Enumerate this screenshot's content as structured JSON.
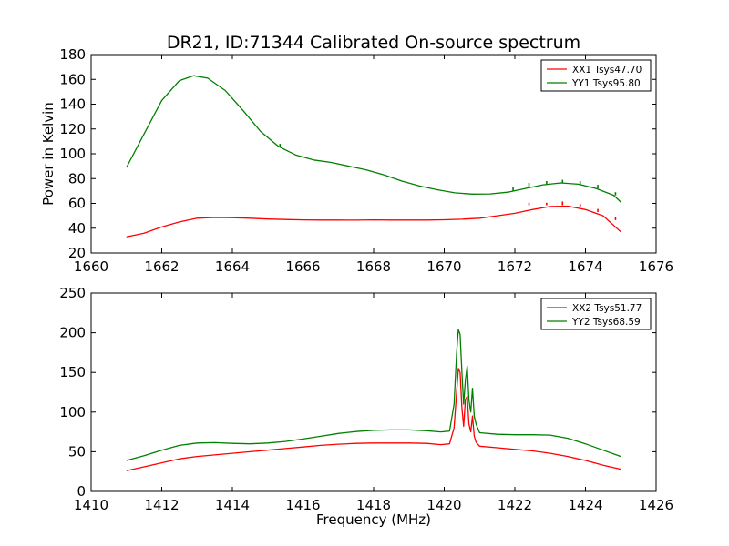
{
  "title": "DR21, ID:71344 Calibrated On-source spectrum",
  "colors": {
    "red": "#ff0000",
    "green": "#008000"
  },
  "chart_data": [
    {
      "type": "line",
      "ylabel": "Power in Kelvin",
      "xlabel": "",
      "xlim": [
        1660,
        1676
      ],
      "ylim": [
        20,
        180
      ],
      "xticks": [
        "1660",
        "1662",
        "1664",
        "1666",
        "1668",
        "1670",
        "1672",
        "1674",
        "1676"
      ],
      "yticks": [
        "20",
        "40",
        "60",
        "80",
        "100",
        "120",
        "140",
        "160",
        "180"
      ],
      "legend_position": "top-right",
      "series": [
        {
          "name": "XX1 Tsys47.70",
          "color": "#ff0000",
          "points": [
            [
              1661.0,
              33
            ],
            [
              1661.5,
              36
            ],
            [
              1662.0,
              41
            ],
            [
              1662.5,
              45
            ],
            [
              1663.0,
              48
            ],
            [
              1663.5,
              48.6
            ],
            [
              1664.0,
              48.5
            ],
            [
              1664.5,
              48
            ],
            [
              1665.0,
              47.4
            ],
            [
              1665.5,
              47
            ],
            [
              1666.0,
              46.7
            ],
            [
              1666.5,
              46.6
            ],
            [
              1667.0,
              46.6
            ],
            [
              1667.5,
              46.5
            ],
            [
              1668.0,
              46.7
            ],
            [
              1668.5,
              46.6
            ],
            [
              1669.0,
              46.6
            ],
            [
              1669.5,
              46.6
            ],
            [
              1670.0,
              46.8
            ],
            [
              1670.5,
              47.2
            ],
            [
              1671.0,
              48
            ],
            [
              1671.5,
              50
            ],
            [
              1672.0,
              52
            ],
            [
              1672.5,
              55
            ],
            [
              1673.0,
              57.5
            ],
            [
              1673.5,
              57.8
            ],
            [
              1674.0,
              55
            ],
            [
              1674.5,
              50
            ],
            [
              1675.0,
              37
            ]
          ],
          "spikes": [
            [
              1672.4,
              58.5,
              60.5
            ],
            [
              1672.9,
              58.5,
              60.5
            ],
            [
              1673.35,
              58.5,
              61.5
            ],
            [
              1673.85,
              57,
              59.5
            ],
            [
              1674.35,
              53,
              55.5
            ],
            [
              1674.85,
              46.5,
              49
            ]
          ]
        },
        {
          "name": "YY1 Tsys95.80",
          "color": "#008000",
          "points": [
            [
              1661.0,
              89
            ],
            [
              1661.5,
              116
            ],
            [
              1662.0,
              143
            ],
            [
              1662.5,
              159
            ],
            [
              1662.9,
              163
            ],
            [
              1663.3,
              161
            ],
            [
              1663.8,
              151
            ],
            [
              1664.3,
              135
            ],
            [
              1664.8,
              118
            ],
            [
              1665.3,
              106
            ],
            [
              1665.8,
              99
            ],
            [
              1666.3,
              95
            ],
            [
              1666.8,
              93
            ],
            [
              1667.3,
              90
            ],
            [
              1667.8,
              87
            ],
            [
              1668.3,
              83
            ],
            [
              1668.8,
              78
            ],
            [
              1669.3,
              74
            ],
            [
              1669.8,
              71
            ],
            [
              1670.3,
              68.5
            ],
            [
              1670.8,
              67.5
            ],
            [
              1671.3,
              67.6
            ],
            [
              1671.8,
              69
            ],
            [
              1672.3,
              72
            ],
            [
              1672.8,
              75
            ],
            [
              1673.3,
              76.5
            ],
            [
              1673.8,
              75.5
            ],
            [
              1674.3,
              72
            ],
            [
              1674.8,
              66.5
            ],
            [
              1675.0,
              61
            ]
          ],
          "spikes": [
            [
              1665.35,
              105,
              108
            ],
            [
              1671.95,
              70,
              73
            ],
            [
              1672.4,
              73.5,
              76.5
            ],
            [
              1672.9,
              75.5,
              78
            ],
            [
              1673.35,
              76.5,
              79
            ],
            [
              1673.85,
              75.5,
              78
            ],
            [
              1674.35,
              72,
              75
            ],
            [
              1674.85,
              66.5,
              69
            ]
          ]
        }
      ]
    },
    {
      "type": "line",
      "ylabel": "",
      "xlabel": "Frequency (MHz)",
      "xlim": [
        1410,
        1426
      ],
      "ylim": [
        0,
        250
      ],
      "xticks": [
        "1410",
        "1412",
        "1414",
        "1416",
        "1418",
        "1420",
        "1422",
        "1424",
        "1426"
      ],
      "yticks": [
        "0",
        "50",
        "100",
        "150",
        "200",
        "250"
      ],
      "legend_position": "top-right",
      "series": [
        {
          "name": "XX2 Tsys51.77",
          "color": "#ff0000",
          "points": [
            [
              1411.0,
              26
            ],
            [
              1411.5,
              31
            ],
            [
              1412.0,
              36
            ],
            [
              1412.5,
              41
            ],
            [
              1413.0,
              44
            ],
            [
              1413.5,
              46
            ],
            [
              1414.0,
              48
            ],
            [
              1414.5,
              50
            ],
            [
              1415.0,
              52
            ],
            [
              1415.5,
              54
            ],
            [
              1416.0,
              56
            ],
            [
              1416.5,
              58
            ],
            [
              1417.0,
              59.5
            ],
            [
              1417.5,
              60.5
            ],
            [
              1418.0,
              61
            ],
            [
              1418.5,
              61
            ],
            [
              1419.0,
              61
            ],
            [
              1419.5,
              60.5
            ],
            [
              1419.9,
              59
            ],
            [
              1420.15,
              60
            ],
            [
              1420.28,
              80
            ],
            [
              1420.35,
              125
            ],
            [
              1420.4,
              155
            ],
            [
              1420.45,
              150
            ],
            [
              1420.5,
              105
            ],
            [
              1420.55,
              82
            ],
            [
              1420.6,
              115
            ],
            [
              1420.65,
              120
            ],
            [
              1420.7,
              85
            ],
            [
              1420.75,
              75
            ],
            [
              1420.8,
              95
            ],
            [
              1420.85,
              70
            ],
            [
              1420.9,
              62
            ],
            [
              1421.0,
              57
            ],
            [
              1421.5,
              55
            ],
            [
              1422.0,
              53
            ],
            [
              1422.5,
              51
            ],
            [
              1423.0,
              48
            ],
            [
              1423.5,
              44
            ],
            [
              1424.0,
              39
            ],
            [
              1424.5,
              33
            ],
            [
              1425.0,
              28
            ]
          ]
        },
        {
          "name": "YY2 Tsys68.59",
          "color": "#008000",
          "points": [
            [
              1411.0,
              39
            ],
            [
              1411.5,
              45
            ],
            [
              1412.0,
              52
            ],
            [
              1412.5,
              58
            ],
            [
              1413.0,
              61
            ],
            [
              1413.5,
              61.5
            ],
            [
              1414.0,
              60.5
            ],
            [
              1414.5,
              60
            ],
            [
              1415.0,
              61
            ],
            [
              1415.5,
              63
            ],
            [
              1416.0,
              66
            ],
            [
              1416.5,
              69.5
            ],
            [
              1417.0,
              73
            ],
            [
              1417.5,
              75.5
            ],
            [
              1418.0,
              77
            ],
            [
              1418.5,
              77.5
            ],
            [
              1419.0,
              77.5
            ],
            [
              1419.5,
              76.5
            ],
            [
              1419.9,
              75
            ],
            [
              1420.15,
              76
            ],
            [
              1420.28,
              110
            ],
            [
              1420.35,
              175
            ],
            [
              1420.4,
              204
            ],
            [
              1420.45,
              198
            ],
            [
              1420.5,
              150
            ],
            [
              1420.55,
              110
            ],
            [
              1420.6,
              140
            ],
            [
              1420.65,
              158
            ],
            [
              1420.7,
              115
            ],
            [
              1420.75,
              100
            ],
            [
              1420.8,
              130
            ],
            [
              1420.85,
              95
            ],
            [
              1420.9,
              85
            ],
            [
              1421.0,
              74
            ],
            [
              1421.5,
              72
            ],
            [
              1422.0,
              71.5
            ],
            [
              1422.5,
              71.5
            ],
            [
              1423.0,
              71
            ],
            [
              1423.5,
              67
            ],
            [
              1424.0,
              60
            ],
            [
              1424.5,
              52
            ],
            [
              1425.0,
              44
            ]
          ]
        }
      ]
    }
  ]
}
